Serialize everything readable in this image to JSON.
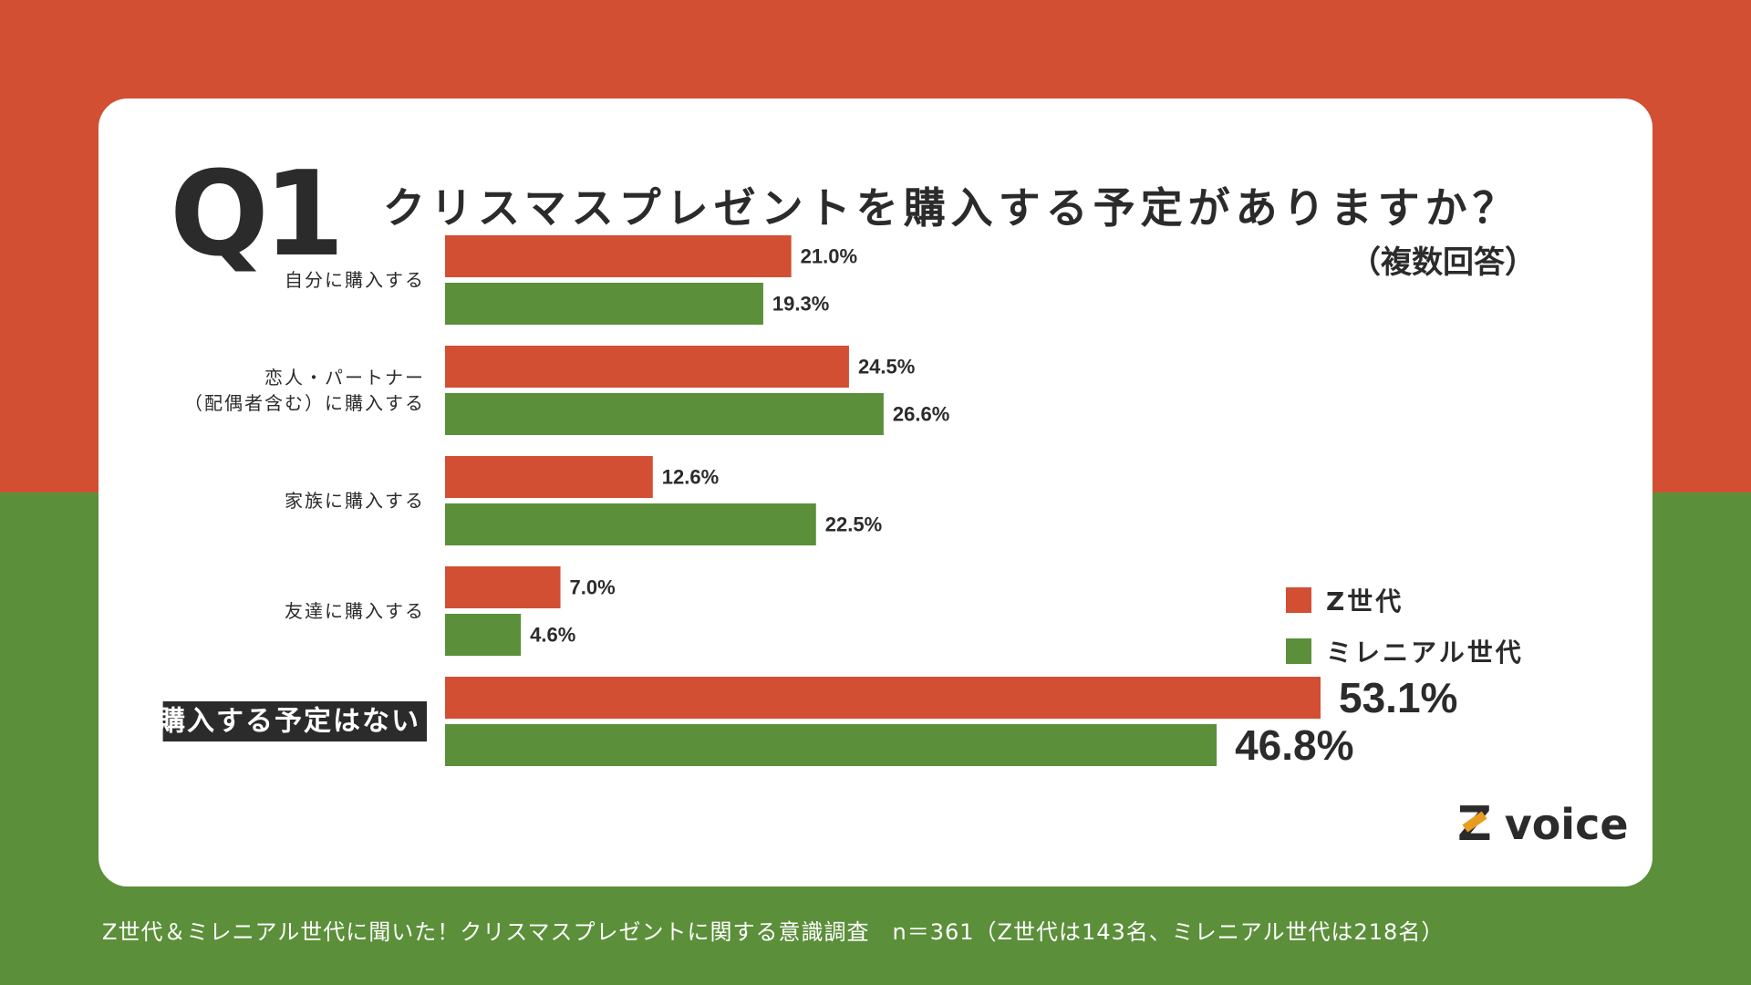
{
  "header": {
    "q_number": "Q1",
    "title": "クリスマスプレゼントを購入する予定がありますか？",
    "subtitle": "（複数回答）"
  },
  "colors": {
    "z": "#d24f33",
    "millennial": "#5b8f3a",
    "highlight_bg": "#2b2b2b"
  },
  "chart_data": {
    "type": "bar",
    "orientation": "horizontal",
    "categories": [
      [
        "自分に購入する"
      ],
      [
        "恋人・パートナー",
        "（配偶者含む）に購入する"
      ],
      [
        "家族に購入する"
      ],
      [
        "友達に購入する"
      ],
      [
        "購入する予定はない"
      ]
    ],
    "highlight_category_index": 4,
    "series": [
      {
        "name": "Z世代",
        "values": [
          21.0,
          24.5,
          12.6,
          7.0,
          53.1
        ],
        "labels": [
          "21.0%",
          "24.5%",
          "12.6%",
          "7.0%",
          "53.1%"
        ]
      },
      {
        "name": "ミレニアル世代",
        "values": [
          19.3,
          26.6,
          22.5,
          4.6,
          46.8
        ],
        "labels": [
          "19.3%",
          "26.6%",
          "22.5%",
          "4.6%",
          "46.8%"
        ]
      }
    ],
    "xlim": [
      0,
      53.1
    ],
    "legend": "right"
  },
  "legend": {
    "z_label": "Z世代",
    "millennial_label": "ミレニアル世代"
  },
  "logo": {
    "z": "Z",
    "text": "voice"
  },
  "footer": {
    "text": "Z世代＆ミレニアル世代に聞いた！クリスマスプレゼントに関する意識調査　n＝361（Z世代は143名、ミレニアル世代は218名）"
  }
}
